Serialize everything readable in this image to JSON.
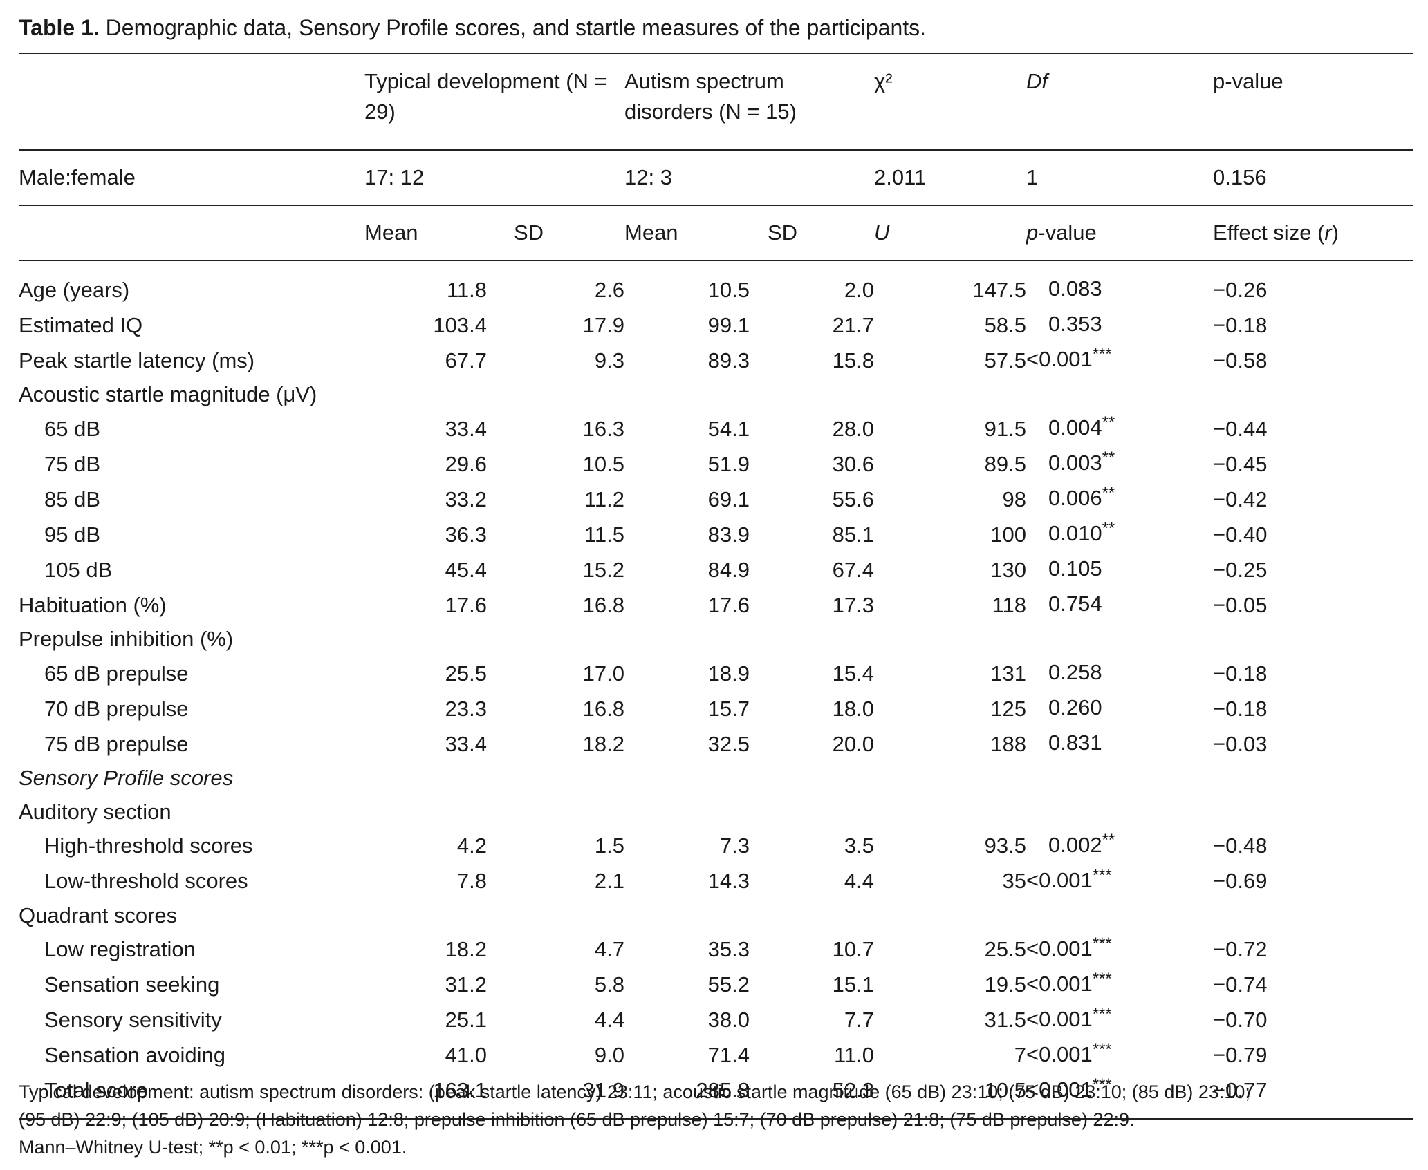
{
  "caption": {
    "label": "Table 1.",
    "text": "Demographic data, Sensory Profile scores, and startle measures of the participants."
  },
  "header1": {
    "td": "Typical development (N = 29)",
    "asd": "Autism spectrum disorders (N = 15)",
    "chi2": "χ²",
    "df": "Df",
    "pvalue": "p-value"
  },
  "sex_row": {
    "label": "Male:female",
    "td": "17: 12",
    "asd": "12: 3",
    "chi2": "2.011",
    "df": "1",
    "p": "0.156"
  },
  "header2": {
    "mean1": "Mean",
    "sd1": "SD",
    "mean2": "Mean",
    "sd2": "SD",
    "u": "U",
    "p": "p-value",
    "effect": "Effect size (r)"
  },
  "rows": [
    {
      "label": "Age (years)",
      "m1": "11.8",
      "sd1": "2.6",
      "m2": "10.5",
      "sd2": "2.0",
      "u": "147.5",
      "p": "0.083",
      "sig": "",
      "r": "−0.26"
    },
    {
      "label": "Estimated IQ",
      "m1": "103.4",
      "sd1": "17.9",
      "m2": "99.1",
      "sd2": "21.7",
      "u": "58.5",
      "p": "0.353",
      "sig": "",
      "r": "−0.18"
    },
    {
      "label": "Peak startle latency (ms)",
      "m1": "67.7",
      "sd1": "9.3",
      "m2": "89.3",
      "sd2": "15.8",
      "u": "57.5",
      "p": "<0.001",
      "sig": "***",
      "r": "−0.58"
    },
    {
      "label": "Acoustic startle magnitude (μV)"
    },
    {
      "label": "65 dB",
      "m1": "33.4",
      "sd1": "16.3",
      "m2": "54.1",
      "sd2": "28.0",
      "u": "91.5",
      "p": "0.004",
      "sig": "**",
      "r": "−0.44"
    },
    {
      "label": "75 dB",
      "m1": "29.6",
      "sd1": "10.5",
      "m2": "51.9",
      "sd2": "30.6",
      "u": "89.5",
      "p": "0.003",
      "sig": "**",
      "r": "−0.45"
    },
    {
      "label": "85 dB",
      "m1": "33.2",
      "sd1": "11.2",
      "m2": "69.1",
      "sd2": "55.6",
      "u": "98",
      "p": "0.006",
      "sig": "**",
      "r": "−0.42"
    },
    {
      "label": "95 dB",
      "m1": "36.3",
      "sd1": "11.5",
      "m2": "83.9",
      "sd2": "85.1",
      "u": "100",
      "p": "0.010",
      "sig": "**",
      "r": "−0.40"
    },
    {
      "label": "105 dB",
      "m1": "45.4",
      "sd1": "15.2",
      "m2": "84.9",
      "sd2": "67.4",
      "u": "130",
      "p": "0.105",
      "sig": "",
      "r": "−0.25"
    },
    {
      "label": "Habituation (%)",
      "m1": "17.6",
      "sd1": "16.8",
      "m2": "17.6",
      "sd2": "17.3",
      "u": "118",
      "p": "0.754",
      "sig": "",
      "r": "−0.05"
    },
    {
      "label": "Prepulse inhibition (%)"
    },
    {
      "label": "65 dB prepulse",
      "m1": "25.5",
      "sd1": "17.0",
      "m2": "18.9",
      "sd2": "15.4",
      "u": "131",
      "p": "0.258",
      "sig": "",
      "r": "−0.18"
    },
    {
      "label": "70 dB prepulse",
      "m1": "23.3",
      "sd1": "16.8",
      "m2": "15.7",
      "sd2": "18.0",
      "u": "125",
      "p": "0.260",
      "sig": "",
      "r": "−0.18"
    },
    {
      "label": "75 dB prepulse",
      "m1": "33.4",
      "sd1": "18.2",
      "m2": "32.5",
      "sd2": "20.0",
      "u": "188",
      "p": "0.831",
      "sig": "",
      "r": "−0.03"
    },
    {
      "label": "Sensory Profile scores"
    },
    {
      "label": "Auditory section"
    },
    {
      "label": "High-threshold scores",
      "m1": "4.2",
      "sd1": "1.5",
      "m2": "7.3",
      "sd2": "3.5",
      "u": "93.5",
      "p": "0.002",
      "sig": "**",
      "r": "−0.48"
    },
    {
      "label": "Low-threshold scores",
      "m1": "7.8",
      "sd1": "2.1",
      "m2": "14.3",
      "sd2": "4.4",
      "u": "35",
      "p": "<0.001",
      "sig": "***",
      "r": "−0.69"
    },
    {
      "label": "Quadrant scores"
    },
    {
      "label": "Low registration",
      "m1": "18.2",
      "sd1": "4.7",
      "m2": "35.3",
      "sd2": "10.7",
      "u": "25.5",
      "p": "<0.001",
      "sig": "***",
      "r": "−0.72"
    },
    {
      "label": "Sensation seeking",
      "m1": "31.2",
      "sd1": "5.8",
      "m2": "55.2",
      "sd2": "15.1",
      "u": "19.5",
      "p": "<0.001",
      "sig": "***",
      "r": "−0.74"
    },
    {
      "label": "Sensory sensitivity",
      "m1": "25.1",
      "sd1": "4.4",
      "m2": "38.0",
      "sd2": "7.7",
      "u": "31.5",
      "p": "<0.001",
      "sig": "***",
      "r": "−0.70"
    },
    {
      "label": "Sensation avoiding",
      "m1": "41.0",
      "sd1": "9.0",
      "m2": "71.4",
      "sd2": "11.0",
      "u": "7",
      "p": "<0.001",
      "sig": "***",
      "r": "−0.79"
    },
    {
      "label": "Total score",
      "m1": "163.1",
      "sd1": "31.9",
      "m2": "285.8",
      "sd2": "52.3",
      "u": "10.5",
      "p": "<0.001",
      "sig": "***",
      "r": "−0.77"
    }
  ],
  "footnote": {
    "line1": "Typical development: autism spectrum disorders: (peak startle latency) 23:11; acoustic startle magnitude (65 dB) 23:10; (75 dB) 23:10; (85 dB) 23:10;",
    "line2": "(95 dB) 22:9; (105 dB) 20:9; (Habituation) 12:8; prepulse inhibition (65 dB prepulse) 15:7; (70 dB prepulse) 21:8; (75 dB prepulse) 22:9.",
    "line3": "Mann–Whitney U-test; **p < 0.01; ***p < 0.001."
  }
}
